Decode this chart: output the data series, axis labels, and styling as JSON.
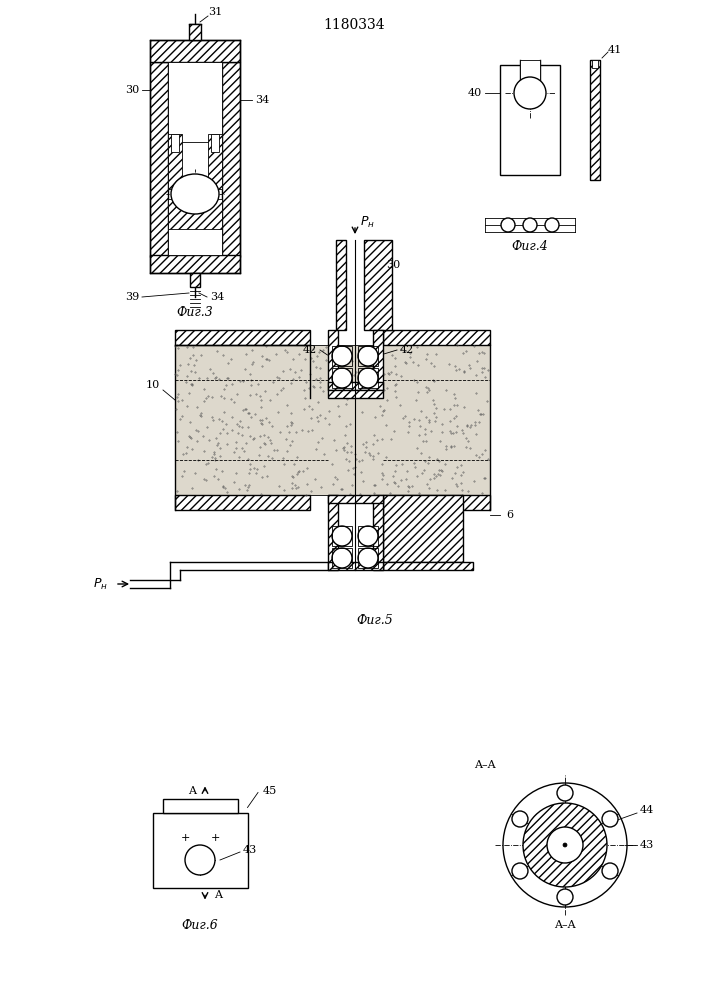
{
  "title": "1180334",
  "background_color": "#ffffff",
  "fig3_label": "Фиг.3",
  "fig4_label": "Фиг.4",
  "fig5_label": "Фиг.5",
  "fig6_label": "Фиг.6",
  "label_31": "31",
  "label_30": "30",
  "label_34": "34",
  "label_39": "39",
  "label_40": "40",
  "label_41": "41",
  "label_42": "42",
  "label_10": "10",
  "label_6": "6",
  "label_45": "45",
  "label_43": "43",
  "label_44": "44",
  "label_Pn": "$P_н$",
  "label_AA": "A–A"
}
